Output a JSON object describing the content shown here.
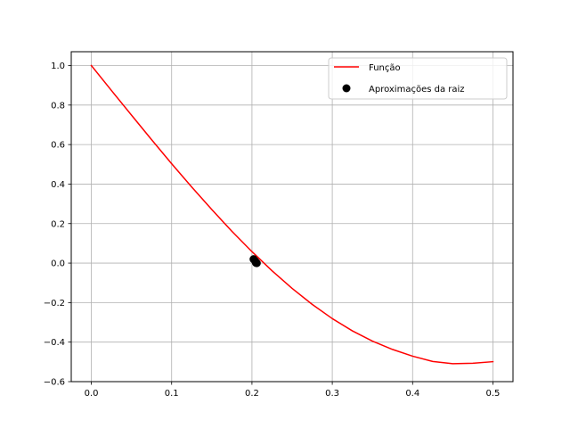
{
  "chart_data": {
    "type": "line",
    "title": "",
    "xlabel": "",
    "ylabel": "",
    "xlim": [
      -0.025,
      0.525
    ],
    "ylim": [
      -0.6,
      1.07
    ],
    "grid": true,
    "legend_position": "top-right",
    "x_ticks": [
      0.0,
      0.1,
      0.2,
      0.3,
      0.4,
      0.5
    ],
    "x_tick_labels": [
      "0.0",
      "0.1",
      "0.2",
      "0.3",
      "0.4",
      "0.5"
    ],
    "y_ticks": [
      1.0,
      0.8,
      0.6,
      0.4,
      0.2,
      0.0,
      -0.2,
      -0.4,
      -0.6
    ],
    "y_tick_labels": [
      "1.0",
      "0.8",
      "0.6",
      "0.4",
      "0.2",
      "0.0",
      "−0.2",
      "−0.4",
      "−0.6"
    ],
    "series": [
      {
        "name": "Função",
        "kind": "line",
        "color": "#ff0000",
        "x": [
          0.0,
          0.025,
          0.05,
          0.075,
          0.1,
          0.125,
          0.15,
          0.175,
          0.2,
          0.225,
          0.25,
          0.275,
          0.3,
          0.325,
          0.35,
          0.375,
          0.4,
          0.425,
          0.45,
          0.475,
          0.5
        ],
        "y": [
          1.0,
          0.874,
          0.749,
          0.625,
          0.503,
          0.385,
          0.271,
          0.161,
          0.058,
          -0.039,
          -0.128,
          -0.209,
          -0.281,
          -0.343,
          -0.395,
          -0.437,
          -0.471,
          -0.498,
          -0.509,
          -0.507,
          -0.499
        ]
      },
      {
        "name": "Aproximações da raiz",
        "kind": "scatter",
        "color": "#000000",
        "x": [
          0.202,
          0.204,
          0.205,
          0.205,
          0.206
        ],
        "y": [
          0.02,
          0.01,
          0.004,
          0.001,
          0.0
        ]
      }
    ]
  }
}
